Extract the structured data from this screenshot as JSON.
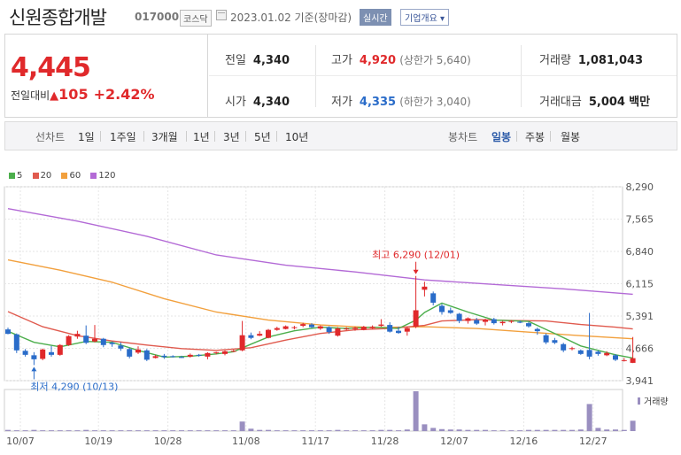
{
  "header": {
    "name": "신원종합개발",
    "code": "017000",
    "market": "코스닥",
    "date": "2023.01.02 기준(장마감)",
    "realtime": "실시간",
    "company_info": "기업개요 ▾"
  },
  "price": {
    "current": "4,445",
    "change_label": "전일대비",
    "change": "105",
    "change_pct": "+2.42%"
  },
  "stats": {
    "prev_close_label": "전일",
    "prev_close": "4,340",
    "high_label": "고가",
    "high": "4,920",
    "upper_limit": "(상한가 5,640)",
    "volume_label": "거래량",
    "volume": "1,081,043",
    "open_label": "시가",
    "open": "4,340",
    "low_label": "저가",
    "low": "4,335",
    "lower_limit": "(하한가 3,040)",
    "amount_label": "거래대금",
    "amount": "5,004",
    "amount_unit": "백만"
  },
  "tabs": {
    "line_label": "선차트",
    "periods": [
      "1일",
      "1주일",
      "3개월",
      "1년",
      "3년",
      "5년",
      "10년"
    ],
    "candle_label": "봉차트",
    "candles": [
      "일봉",
      "주봉",
      "월봉"
    ]
  },
  "colors": {
    "up": "#e0292b",
    "down": "#2a6cc9",
    "ma5": "#4cae4c",
    "ma20": "#e05a4e",
    "ma60": "#f2a03d",
    "ma120": "#b36ad6",
    "volume": "#9a8fc0"
  },
  "chart_data": {
    "type": "candlestick",
    "legend": [
      "5",
      "20",
      "60",
      "120"
    ],
    "y_ticks": [
      "8,290",
      "7,565",
      "6,840",
      "6,115",
      "5,391",
      "4,666",
      "3,941"
    ],
    "ylim": [
      3941,
      8290
    ],
    "x_ticks": [
      "10/07",
      "10/19",
      "10/28",
      "11/08",
      "11/17",
      "11/28",
      "12/07",
      "12/16",
      "12/27"
    ],
    "volume_label": "거래량",
    "annotations": {
      "high": "최고 6,290 (12/01)",
      "low": "최저 4,290 (10/13)"
    },
    "candles": [
      {
        "o": 5090,
        "h": 5130,
        "l": 4980,
        "c": 4990
      },
      {
        "o": 4980,
        "h": 5000,
        "l": 4560,
        "c": 4620
      },
      {
        "o": 4610,
        "h": 4650,
        "l": 4480,
        "c": 4520
      },
      {
        "o": 4510,
        "h": 4580,
        "l": 4290,
        "c": 4420
      },
      {
        "o": 4430,
        "h": 4660,
        "l": 4400,
        "c": 4640
      },
      {
        "o": 4580,
        "h": 4720,
        "l": 4480,
        "c": 4520
      },
      {
        "o": 4520,
        "h": 4760,
        "l": 4500,
        "c": 4740
      },
      {
        "o": 4740,
        "h": 4960,
        "l": 4720,
        "c": 4940
      },
      {
        "o": 4930,
        "h": 5060,
        "l": 4880,
        "c": 4990
      },
      {
        "o": 4950,
        "h": 5180,
        "l": 4760,
        "c": 4790
      },
      {
        "o": 4820,
        "h": 5190,
        "l": 4800,
        "c": 4880
      },
      {
        "o": 4880,
        "h": 4900,
        "l": 4690,
        "c": 4740
      },
      {
        "o": 4790,
        "h": 4820,
        "l": 4700,
        "c": 4760
      },
      {
        "o": 4730,
        "h": 4800,
        "l": 4610,
        "c": 4660
      },
      {
        "o": 4650,
        "h": 4680,
        "l": 4440,
        "c": 4480
      },
      {
        "o": 4570,
        "h": 4710,
        "l": 4540,
        "c": 4640
      },
      {
        "o": 4620,
        "h": 4650,
        "l": 4380,
        "c": 4410
      },
      {
        "o": 4450,
        "h": 4520,
        "l": 4440,
        "c": 4490
      },
      {
        "o": 4500,
        "h": 4540,
        "l": 4430,
        "c": 4470
      },
      {
        "o": 4490,
        "h": 4510,
        "l": 4460,
        "c": 4480
      },
      {
        "o": 4470,
        "h": 4500,
        "l": 4450,
        "c": 4460
      },
      {
        "o": 4480,
        "h": 4550,
        "l": 4460,
        "c": 4520
      },
      {
        "o": 4520,
        "h": 4540,
        "l": 4480,
        "c": 4500
      },
      {
        "o": 4480,
        "h": 4580,
        "l": 4420,
        "c": 4560
      },
      {
        "o": 4560,
        "h": 4590,
        "l": 4530,
        "c": 4580
      },
      {
        "o": 4540,
        "h": 4620,
        "l": 4510,
        "c": 4600
      },
      {
        "o": 4600,
        "h": 4640,
        "l": 4580,
        "c": 4610
      },
      {
        "o": 4620,
        "h": 5280,
        "l": 4600,
        "c": 4960
      },
      {
        "o": 4960,
        "h": 5020,
        "l": 4870,
        "c": 4900
      },
      {
        "o": 4950,
        "h": 5050,
        "l": 4940,
        "c": 4990
      },
      {
        "o": 4900,
        "h": 5100,
        "l": 4890,
        "c": 5080
      },
      {
        "o": 5080,
        "h": 5150,
        "l": 5060,
        "c": 5120
      },
      {
        "o": 5100,
        "h": 5180,
        "l": 5090,
        "c": 5160
      },
      {
        "o": 5120,
        "h": 5170,
        "l": 5090,
        "c": 5140
      },
      {
        "o": 5170,
        "h": 5240,
        "l": 5140,
        "c": 5210
      },
      {
        "o": 5200,
        "h": 5230,
        "l": 5120,
        "c": 5140
      },
      {
        "o": 5110,
        "h": 5180,
        "l": 5080,
        "c": 5160
      },
      {
        "o": 5140,
        "h": 5160,
        "l": 4990,
        "c": 5030
      },
      {
        "o": 4950,
        "h": 5140,
        "l": 4930,
        "c": 5110
      },
      {
        "o": 5100,
        "h": 5140,
        "l": 5070,
        "c": 5110
      },
      {
        "o": 5100,
        "h": 5150,
        "l": 5060,
        "c": 5130
      },
      {
        "o": 5080,
        "h": 5170,
        "l": 5070,
        "c": 5150
      },
      {
        "o": 5120,
        "h": 5180,
        "l": 5100,
        "c": 5150
      },
      {
        "o": 5170,
        "h": 5320,
        "l": 5150,
        "c": 5200
      },
      {
        "o": 5190,
        "h": 5250,
        "l": 5020,
        "c": 5040
      },
      {
        "o": 5060,
        "h": 5150,
        "l": 4990,
        "c": 5010
      },
      {
        "o": 5040,
        "h": 5150,
        "l": 4950,
        "c": 5120
      },
      {
        "o": 5150,
        "h": 6290,
        "l": 5120,
        "c": 5520
      },
      {
        "o": 5980,
        "h": 6160,
        "l": 5830,
        "c": 6050
      },
      {
        "o": 5900,
        "h": 5940,
        "l": 5630,
        "c": 5690
      },
      {
        "o": 5620,
        "h": 5660,
        "l": 5420,
        "c": 5480
      },
      {
        "o": 5520,
        "h": 5580,
        "l": 5440,
        "c": 5460
      },
      {
        "o": 5440,
        "h": 5460,
        "l": 5230,
        "c": 5280
      },
      {
        "o": 5280,
        "h": 5360,
        "l": 5220,
        "c": 5340
      },
      {
        "o": 5300,
        "h": 5350,
        "l": 5190,
        "c": 5220
      },
      {
        "o": 5260,
        "h": 5330,
        "l": 5180,
        "c": 5310
      },
      {
        "o": 5320,
        "h": 5350,
        "l": 5200,
        "c": 5230
      },
      {
        "o": 5230,
        "h": 5280,
        "l": 5180,
        "c": 5260
      },
      {
        "o": 5260,
        "h": 5300,
        "l": 5230,
        "c": 5280
      },
      {
        "o": 5260,
        "h": 5290,
        "l": 5230,
        "c": 5250
      },
      {
        "o": 5230,
        "h": 5260,
        "l": 5130,
        "c": 5160
      },
      {
        "o": 5100,
        "h": 5130,
        "l": 4970,
        "c": 5050
      },
      {
        "o": 4960,
        "h": 5000,
        "l": 4760,
        "c": 4800
      },
      {
        "o": 4850,
        "h": 4900,
        "l": 4760,
        "c": 4790
      },
      {
        "o": 4760,
        "h": 4790,
        "l": 4580,
        "c": 4620
      },
      {
        "o": 4650,
        "h": 4700,
        "l": 4620,
        "c": 4670
      },
      {
        "o": 4620,
        "h": 4640,
        "l": 4520,
        "c": 4540
      },
      {
        "o": 4630,
        "h": 5460,
        "l": 4420,
        "c": 4480
      },
      {
        "o": 4590,
        "h": 4620,
        "l": 4500,
        "c": 4540
      },
      {
        "o": 4510,
        "h": 4600,
        "l": 4490,
        "c": 4560
      },
      {
        "o": 4510,
        "h": 4540,
        "l": 4380,
        "c": 4410
      },
      {
        "o": 4390,
        "h": 4450,
        "l": 4370,
        "c": 4400
      },
      {
        "o": 4340,
        "h": 4920,
        "l": 4335,
        "c": 4445
      }
    ],
    "ma5": [
      [
        0,
        5050
      ],
      [
        3,
        4800
      ],
      [
        6,
        4700
      ],
      [
        9,
        4820
      ],
      [
        12,
        4800
      ],
      [
        15,
        4620
      ],
      [
        18,
        4470
      ],
      [
        21,
        4490
      ],
      [
        24,
        4540
      ],
      [
        26,
        4590
      ],
      [
        28,
        4760
      ],
      [
        30,
        4920
      ],
      [
        33,
        5060
      ],
      [
        36,
        5140
      ],
      [
        39,
        5110
      ],
      [
        42,
        5140
      ],
      [
        45,
        5110
      ],
      [
        47,
        5300
      ],
      [
        48,
        5470
      ],
      [
        50,
        5680
      ],
      [
        53,
        5480
      ],
      [
        56,
        5300
      ],
      [
        60,
        5270
      ],
      [
        63,
        5000
      ],
      [
        66,
        4720
      ],
      [
        68,
        4620
      ],
      [
        70,
        4520
      ],
      [
        72,
        4450
      ]
    ],
    "ma20": [
      [
        0,
        5490
      ],
      [
        4,
        5150
      ],
      [
        8,
        4950
      ],
      [
        12,
        4830
      ],
      [
        16,
        4740
      ],
      [
        20,
        4660
      ],
      [
        24,
        4620
      ],
      [
        28,
        4680
      ],
      [
        32,
        4850
      ],
      [
        36,
        5000
      ],
      [
        40,
        5080
      ],
      [
        44,
        5110
      ],
      [
        48,
        5180
      ],
      [
        50,
        5280
      ],
      [
        54,
        5310
      ],
      [
        58,
        5290
      ],
      [
        62,
        5280
      ],
      [
        66,
        5200
      ],
      [
        70,
        5140
      ],
      [
        72,
        5100
      ]
    ],
    "ma60": [
      [
        0,
        6650
      ],
      [
        6,
        6420
      ],
      [
        12,
        6150
      ],
      [
        18,
        5780
      ],
      [
        24,
        5480
      ],
      [
        30,
        5300
      ],
      [
        36,
        5190
      ],
      [
        42,
        5130
      ],
      [
        48,
        5150
      ],
      [
        54,
        5110
      ],
      [
        60,
        5030
      ],
      [
        66,
        4950
      ],
      [
        72,
        4880
      ]
    ],
    "ma120": [
      [
        0,
        7800
      ],
      [
        8,
        7520
      ],
      [
        16,
        7180
      ],
      [
        24,
        6760
      ],
      [
        32,
        6530
      ],
      [
        40,
        6380
      ],
      [
        48,
        6200
      ],
      [
        56,
        6100
      ],
      [
        64,
        6000
      ],
      [
        72,
        5880
      ]
    ],
    "volume": [
      3,
      2,
      2,
      3,
      2,
      2,
      2,
      2,
      2,
      3,
      2,
      2,
      2,
      2,
      2,
      2,
      2,
      2,
      2,
      2,
      2,
      2,
      2,
      2,
      2,
      2,
      2,
      24,
      6,
      3,
      3,
      2,
      2,
      2,
      2,
      2,
      2,
      2,
      3,
      2,
      2,
      2,
      2,
      3,
      3,
      2,
      4,
      100,
      17,
      8,
      5,
      4,
      4,
      3,
      3,
      3,
      2,
      2,
      2,
      2,
      3,
      3,
      3,
      3,
      3,
      3,
      4,
      68,
      8,
      4,
      4,
      3,
      26
    ]
  }
}
